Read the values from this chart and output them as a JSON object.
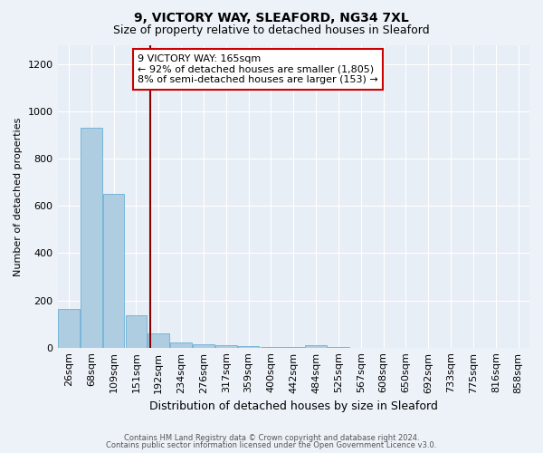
{
  "title1": "9, VICTORY WAY, SLEAFORD, NG34 7XL",
  "title2": "Size of property relative to detached houses in Sleaford",
  "xlabel": "Distribution of detached houses by size in Sleaford",
  "ylabel": "Number of detached properties",
  "footer1": "Contains HM Land Registry data © Crown copyright and database right 2024.",
  "footer2": "Contains public sector information licensed under the Open Government Licence v3.0.",
  "annotation_line1": "9 VICTORY WAY: 165sqm",
  "annotation_line2": "← 92% of detached houses are smaller (1,805)",
  "annotation_line3": "8% of semi-detached houses are larger (153) →",
  "bar_color": "#aecde1",
  "bar_edge_color": "#6aafd6",
  "vline_color": "#8b0000",
  "categories": [
    "26sqm",
    "68sqm",
    "109sqm",
    "151sqm",
    "192sqm",
    "234sqm",
    "276sqm",
    "317sqm",
    "359sqm",
    "400sqm",
    "442sqm",
    "484sqm",
    "525sqm",
    "567sqm",
    "608sqm",
    "650sqm",
    "692sqm",
    "733sqm",
    "775sqm",
    "816sqm",
    "858sqm"
  ],
  "values": [
    165,
    930,
    650,
    135,
    62,
    22,
    14,
    9,
    5,
    3,
    2,
    10,
    3,
    0,
    0,
    0,
    0,
    0,
    0,
    0,
    0
  ],
  "ylim": [
    0,
    1280
  ],
  "yticks": [
    0,
    200,
    400,
    600,
    800,
    1000,
    1200
  ],
  "vline_x_index": 3.62,
  "background_color": "#edf2f8",
  "plot_bg_color": "#e8eef5"
}
